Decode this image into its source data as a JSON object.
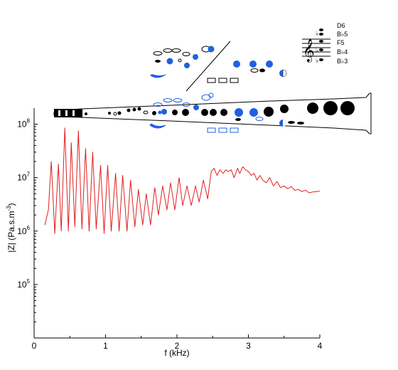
{
  "chart_data": {
    "type": "line",
    "title": "",
    "xlabel": "f (kHz)",
    "ylabel_main": "|Z| (Pa.s.m",
    "ylabel_sup": "-3",
    "ylabel_tail": ")",
    "xlim": [
      0,
      4
    ],
    "ylim_log10": [
      4.0,
      8.3
    ],
    "y_scale": "log",
    "x_ticks": [
      0,
      1,
      2,
      3,
      4
    ],
    "x_tick_labels": [
      "0",
      "1",
      "2",
      "3",
      "4"
    ],
    "y_ticks": [
      {
        "exponent": 5,
        "base": "10",
        "sup": "5"
      },
      {
        "exponent": 6,
        "base": "10",
        "sup": "6"
      },
      {
        "exponent": 7,
        "base": "10",
        "sup": "7"
      },
      {
        "exponent": 8,
        "base": "10",
        "sup": "8"
      }
    ],
    "grid": false,
    "line_color": "#e02020",
    "series": [
      {
        "name": "",
        "x": [
          0.15,
          0.2,
          0.24,
          0.29,
          0.34,
          0.38,
          0.43,
          0.48,
          0.52,
          0.57,
          0.62,
          0.67,
          0.72,
          0.77,
          0.82,
          0.87,
          0.93,
          0.98,
          1.03,
          1.08,
          1.14,
          1.19,
          1.24,
          1.3,
          1.35,
          1.41,
          1.46,
          1.52,
          1.57,
          1.63,
          1.69,
          1.74,
          1.8,
          1.86,
          1.91,
          1.97,
          2.03,
          2.08,
          2.14,
          2.2,
          2.26,
          2.31,
          2.37,
          2.43,
          2.48,
          2.52,
          2.56,
          2.6,
          2.65,
          2.68,
          2.72,
          2.76,
          2.8,
          2.85,
          2.88,
          2.92,
          2.96,
          3.0,
          3.04,
          3.08,
          3.12,
          3.16,
          3.2,
          3.25,
          3.3,
          3.35,
          3.4,
          3.45,
          3.5,
          3.55,
          3.6,
          3.65,
          3.7,
          3.75,
          3.8,
          3.85,
          3.9,
          3.95,
          4.0
        ],
        "values": [
          1300000,
          2500000,
          20000000,
          900000,
          18000000,
          1000000,
          85000000,
          1000000,
          45000000,
          1200000,
          75000000,
          1100000,
          35000000,
          1000000,
          30000000,
          1100000,
          17000000,
          900000,
          17000000,
          1000000,
          12000000,
          1000000,
          11000000,
          1000000,
          9000000,
          1200000,
          6000000,
          1300000,
          5000000,
          1300000,
          6500000,
          2000000,
          7000000,
          2500000,
          8000000,
          2500000,
          10000000,
          3000000,
          7000000,
          3000000,
          7000000,
          3500000,
          9000000,
          4000000,
          13000000,
          15000000,
          11000000,
          14000000,
          12000000,
          14000000,
          13000000,
          14000000,
          10000000,
          15000000,
          12000000,
          16000000,
          14000000,
          13000000,
          11000000,
          12000000,
          9000000,
          11000000,
          9000000,
          8000000,
          10000000,
          7000000,
          8500000,
          6500000,
          7000000,
          6200000,
          6800000,
          5800000,
          6000000,
          5500000,
          5800000,
          5200000,
          5400000,
          5500000,
          5600000
        ]
      }
    ]
  },
  "overlay": {
    "clef_icon": "treble-clef",
    "notes": [
      "D6",
      "B♭5",
      "F5",
      "B♭4",
      "B♭3"
    ]
  }
}
